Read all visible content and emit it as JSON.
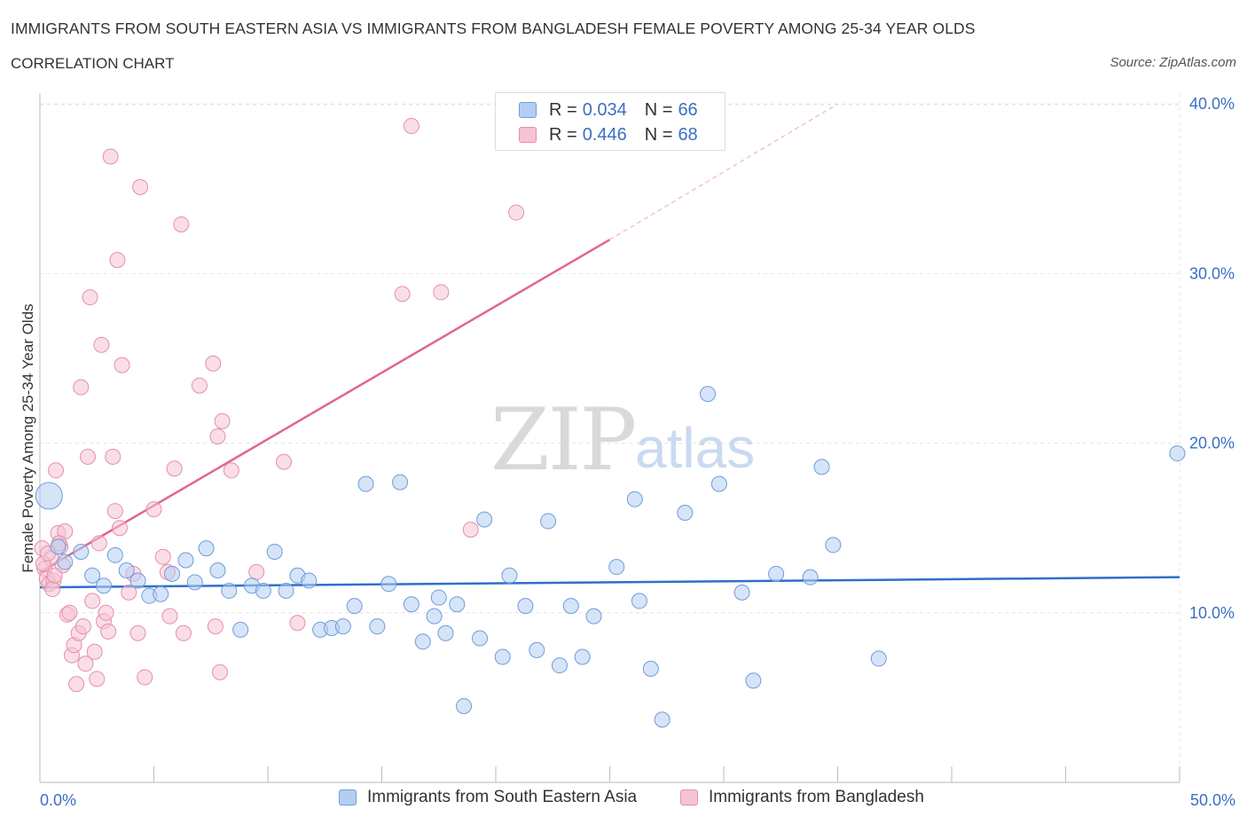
{
  "header": {
    "title": "IMMIGRANTS FROM SOUTH EASTERN ASIA VS IMMIGRANTS FROM BANGLADESH FEMALE POVERTY AMONG 25-34 YEAR OLDS",
    "subtitle": "CORRELATION CHART",
    "source": "Source: ZipAtlas.com"
  },
  "watermark": {
    "zip": "ZIP",
    "atlas": "atlas"
  },
  "legend": {
    "r_label": "R = ",
    "n_label": "N = ",
    "series": [
      {
        "name": "Immigrants from South Eastern Asia",
        "r": "0.034",
        "n": "66"
      },
      {
        "name": "Immigrants from Bangladesh",
        "r": "0.446",
        "n": "68"
      }
    ]
  },
  "colors": {
    "blue_fill": "#b4cef2",
    "blue_stroke": "#6d9ddb",
    "blue_line": "#2f6fc9",
    "pink_fill": "#f6c3d2",
    "pink_stroke": "#e58fab",
    "pink_line": "#e0668f",
    "axis_text": "#3a6fc4",
    "grid": "#e4e4e4"
  },
  "chart_data": {
    "type": "scatter",
    "title": "IMMIGRANTS FROM SOUTH EASTERN ASIA VS IMMIGRANTS FROM BANGLADESH FEMALE POVERTY AMONG 25-34 YEAR OLDS",
    "xlabel": "",
    "ylabel": "Female Poverty Among 25-34 Year Olds",
    "xlim": [
      0,
      50
    ],
    "ylim": [
      0,
      40.6
    ],
    "x_tick_labels": [
      "0.0%",
      "50.0%"
    ],
    "y_ticks": [
      10,
      20,
      30,
      40
    ],
    "y_tick_labels": [
      "10.0%",
      "20.0%",
      "30.0%",
      "40.0%"
    ],
    "grid": true,
    "legend_position": "top-center",
    "series": [
      {
        "name": "Immigrants from South Eastern Asia",
        "color": "#b4cef2",
        "trend": {
          "x": [
            0,
            50
          ],
          "y": [
            11.5,
            12.1
          ]
        },
        "points": [
          [
            0.4,
            16.9
          ],
          [
            0.8,
            13.9
          ],
          [
            1.1,
            13.0
          ],
          [
            1.8,
            13.6
          ],
          [
            2.3,
            12.2
          ],
          [
            2.8,
            11.6
          ],
          [
            3.3,
            13.4
          ],
          [
            3.8,
            12.5
          ],
          [
            4.3,
            11.9
          ],
          [
            4.8,
            11.0
          ],
          [
            5.3,
            11.1
          ],
          [
            5.8,
            12.3
          ],
          [
            6.4,
            13.1
          ],
          [
            6.8,
            11.8
          ],
          [
            7.3,
            13.8
          ],
          [
            7.8,
            12.5
          ],
          [
            8.3,
            11.3
          ],
          [
            8.8,
            9.0
          ],
          [
            9.3,
            11.6
          ],
          [
            9.8,
            11.3
          ],
          [
            10.3,
            13.6
          ],
          [
            10.8,
            11.3
          ],
          [
            11.3,
            12.2
          ],
          [
            11.8,
            11.9
          ],
          [
            12.3,
            9.0
          ],
          [
            12.8,
            9.1
          ],
          [
            13.3,
            9.2
          ],
          [
            13.8,
            10.4
          ],
          [
            14.3,
            17.6
          ],
          [
            14.8,
            9.2
          ],
          [
            15.3,
            11.7
          ],
          [
            15.8,
            17.7
          ],
          [
            16.3,
            10.5
          ],
          [
            16.8,
            8.3
          ],
          [
            17.3,
            9.8
          ],
          [
            17.5,
            10.9
          ],
          [
            17.8,
            8.8
          ],
          [
            18.3,
            10.5
          ],
          [
            18.6,
            4.5
          ],
          [
            19.3,
            8.5
          ],
          [
            19.5,
            15.5
          ],
          [
            20.3,
            7.4
          ],
          [
            20.6,
            12.2
          ],
          [
            21.3,
            10.4
          ],
          [
            21.8,
            7.8
          ],
          [
            22.3,
            15.4
          ],
          [
            22.8,
            6.9
          ],
          [
            23.3,
            10.4
          ],
          [
            23.8,
            7.4
          ],
          [
            24.3,
            9.8
          ],
          [
            25.3,
            12.7
          ],
          [
            26.1,
            16.7
          ],
          [
            26.3,
            10.7
          ],
          [
            26.8,
            6.7
          ],
          [
            27.3,
            3.7
          ],
          [
            28.3,
            15.9
          ],
          [
            29.3,
            22.9
          ],
          [
            29.8,
            17.6
          ],
          [
            30.8,
            11.2
          ],
          [
            31.3,
            6.0
          ],
          [
            32.3,
            12.3
          ],
          [
            33.8,
            12.1
          ],
          [
            34.3,
            18.6
          ],
          [
            34.8,
            14.0
          ],
          [
            36.8,
            7.3
          ],
          [
            49.9,
            19.4
          ]
        ]
      },
      {
        "name": "Immigrants from Bangladesh",
        "color": "#f6c3d2",
        "trend": {
          "x": [
            0,
            25
          ],
          "y": [
            12.4,
            32.0
          ]
        },
        "trend_extension": {
          "x": [
            25,
            35
          ],
          "y": [
            32.0,
            40.0
          ]
        },
        "points": [
          [
            0.1,
            13.8
          ],
          [
            0.2,
            12.6
          ],
          [
            0.3,
            12.0
          ],
          [
            0.4,
            11.7
          ],
          [
            0.5,
            13.2
          ],
          [
            0.6,
            11.9
          ],
          [
            0.7,
            18.4
          ],
          [
            0.8,
            14.7
          ],
          [
            0.9,
            13.9
          ],
          [
            1.0,
            12.8
          ],
          [
            1.1,
            14.8
          ],
          [
            1.2,
            9.9
          ],
          [
            1.3,
            10.0
          ],
          [
            1.4,
            7.5
          ],
          [
            1.5,
            8.1
          ],
          [
            1.6,
            5.8
          ],
          [
            1.7,
            8.8
          ],
          [
            1.8,
            23.3
          ],
          [
            1.9,
            9.2
          ],
          [
            2.0,
            7.0
          ],
          [
            2.1,
            19.2
          ],
          [
            2.2,
            28.6
          ],
          [
            2.3,
            10.7
          ],
          [
            2.4,
            7.7
          ],
          [
            2.5,
            6.1
          ],
          [
            2.6,
            14.1
          ],
          [
            2.7,
            25.8
          ],
          [
            2.8,
            9.5
          ],
          [
            2.9,
            10.0
          ],
          [
            3.0,
            8.9
          ],
          [
            3.1,
            36.9
          ],
          [
            3.2,
            19.2
          ],
          [
            3.3,
            16.0
          ],
          [
            3.4,
            30.8
          ],
          [
            3.5,
            15.0
          ],
          [
            3.6,
            24.6
          ],
          [
            3.9,
            11.2
          ],
          [
            4.1,
            12.3
          ],
          [
            4.3,
            8.8
          ],
          [
            4.4,
            35.1
          ],
          [
            4.6,
            6.2
          ],
          [
            5.0,
            16.1
          ],
          [
            5.4,
            13.3
          ],
          [
            5.6,
            12.4
          ],
          [
            5.7,
            9.8
          ],
          [
            5.9,
            18.5
          ],
          [
            6.2,
            32.9
          ],
          [
            6.3,
            8.8
          ],
          [
            7.0,
            23.4
          ],
          [
            7.6,
            24.7
          ],
          [
            7.7,
            9.2
          ],
          [
            7.8,
            20.4
          ],
          [
            7.9,
            6.5
          ],
          [
            8.0,
            21.3
          ],
          [
            8.4,
            18.4
          ],
          [
            9.5,
            12.4
          ],
          [
            10.7,
            18.9
          ],
          [
            11.3,
            9.4
          ],
          [
            15.9,
            28.8
          ],
          [
            16.3,
            38.7
          ],
          [
            17.6,
            28.9
          ],
          [
            18.9,
            14.9
          ],
          [
            20.9,
            33.6
          ],
          [
            0.15,
            12.9
          ],
          [
            0.35,
            13.5
          ],
          [
            0.55,
            11.4
          ],
          [
            0.65,
            12.2
          ],
          [
            0.85,
            14.1
          ]
        ]
      }
    ]
  }
}
